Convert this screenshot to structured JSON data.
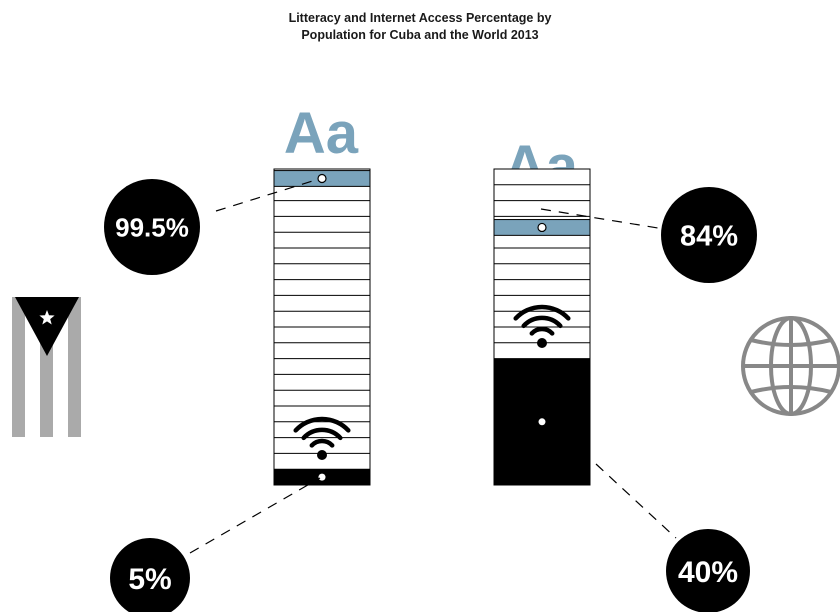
{
  "chart_data": {
    "type": "bar",
    "title_line1": "Litteracy and Internet Access Percentage by",
    "title_line2": "Population for Cuba and the World 2013",
    "aa_label": "Aa",
    "bars": [
      {
        "literacy_pct": 99.5,
        "internet_pct": 5,
        "literacy_label": "99.5%",
        "internet_label": "5%"
      },
      {
        "literacy_pct": 84,
        "internet_pct": 40,
        "literacy_label": "84%",
        "internet_label": "40%"
      }
    ]
  },
  "colors": {
    "literacy": "#7aa3bb",
    "internet": "#000000",
    "flag_stripe": "#aaaaaa",
    "globe": "#888888",
    "badge": "#000000"
  },
  "icons": [
    "cuba-flag-icon",
    "globe-icon",
    "wifi-icon",
    "literacy-aa-icon"
  ]
}
